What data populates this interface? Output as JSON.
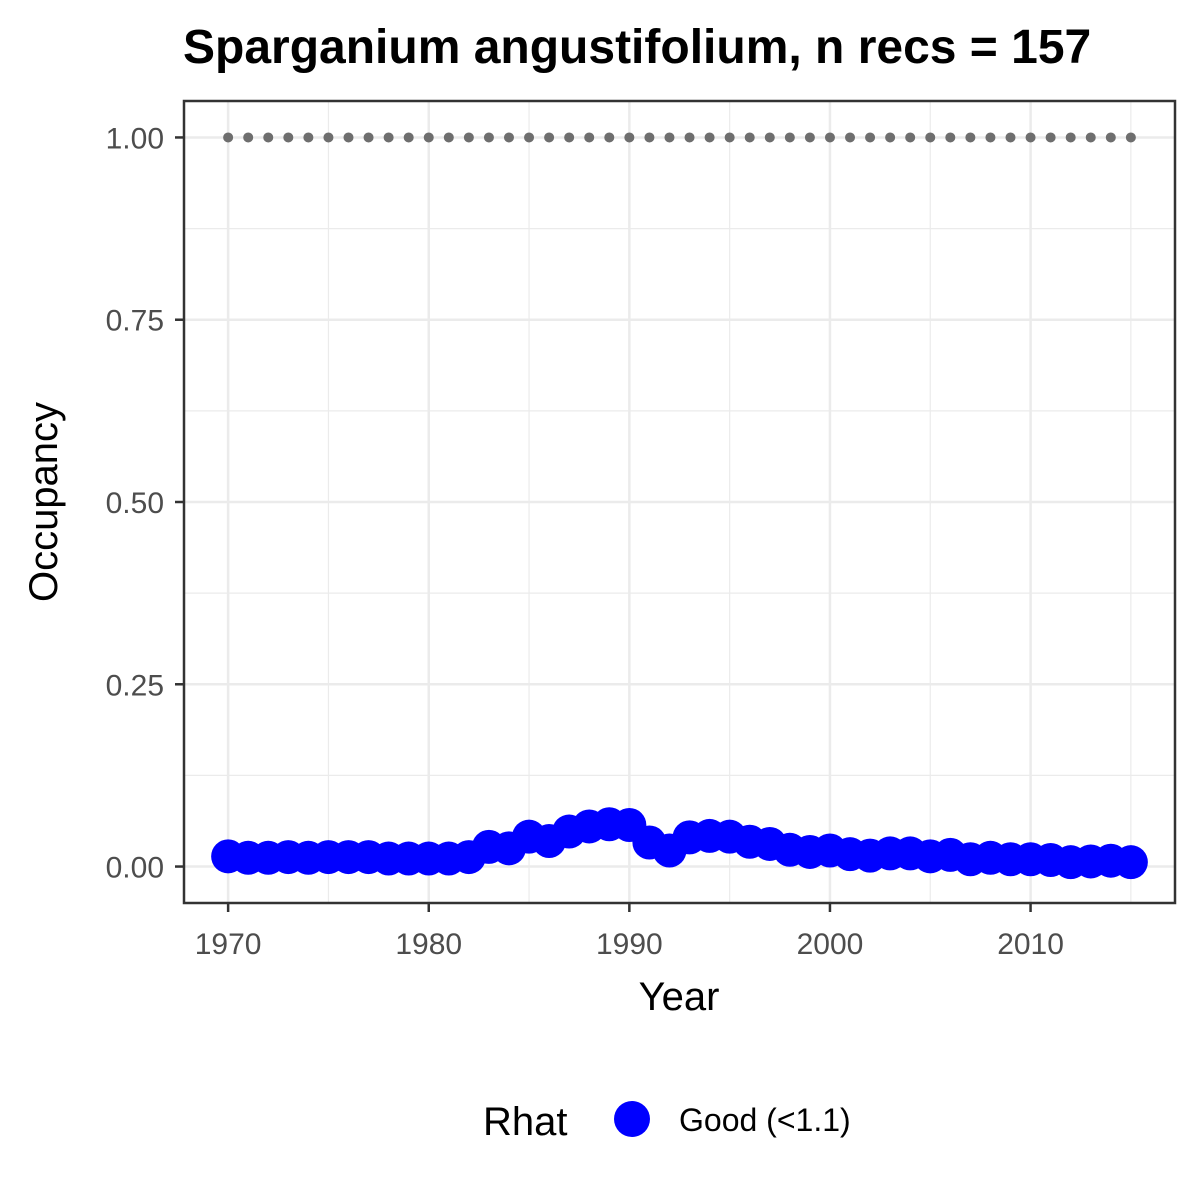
{
  "chart_data": {
    "type": "line",
    "title": "Sparganium angustifolium, n recs = 157",
    "xlabel": "Year",
    "ylabel": "Occupancy",
    "xlim": [
      1967.8,
      2017.2
    ],
    "ylim": [
      -0.05,
      1.05
    ],
    "xticks": [
      1970,
      1980,
      1990,
      2000,
      2010
    ],
    "yticks": [
      0.0,
      0.25,
      0.5,
      0.75,
      1.0
    ],
    "ytick_labels": [
      "0.00",
      "0.25",
      "0.50",
      "0.75",
      "1.00"
    ],
    "grid": true,
    "colors": {
      "occupancy": "#0000ff",
      "reference": "#6e6e6e",
      "grid": "#ebebeb",
      "frame": "#333333"
    },
    "series": [
      {
        "name": "Occupancy",
        "x": [
          1970,
          1971,
          1972,
          1973,
          1974,
          1975,
          1976,
          1977,
          1978,
          1979,
          1980,
          1981,
          1982,
          1983,
          1984,
          1985,
          1986,
          1987,
          1988,
          1989,
          1990,
          1991,
          1992,
          1993,
          1994,
          1995,
          1996,
          1997,
          1998,
          1999,
          2000,
          2001,
          2002,
          2003,
          2004,
          2005,
          2006,
          2007,
          2008,
          2009,
          2010,
          2011,
          2012,
          2013,
          2014,
          2015
        ],
        "values": [
          0.014,
          0.012,
          0.012,
          0.013,
          0.012,
          0.013,
          0.013,
          0.013,
          0.011,
          0.011,
          0.011,
          0.011,
          0.013,
          0.027,
          0.025,
          0.041,
          0.035,
          0.048,
          0.055,
          0.058,
          0.057,
          0.033,
          0.022,
          0.04,
          0.042,
          0.041,
          0.034,
          0.031,
          0.023,
          0.02,
          0.022,
          0.017,
          0.015,
          0.018,
          0.018,
          0.014,
          0.016,
          0.01,
          0.012,
          0.01,
          0.01,
          0.009,
          0.006,
          0.007,
          0.008,
          0.006
        ]
      },
      {
        "name": "Reference",
        "x": [
          1970,
          1971,
          1972,
          1973,
          1974,
          1975,
          1976,
          1977,
          1978,
          1979,
          1980,
          1981,
          1982,
          1983,
          1984,
          1985,
          1986,
          1987,
          1988,
          1989,
          1990,
          1991,
          1992,
          1993,
          1994,
          1995,
          1996,
          1997,
          1998,
          1999,
          2000,
          2001,
          2002,
          2003,
          2004,
          2005,
          2006,
          2007,
          2008,
          2009,
          2010,
          2011,
          2012,
          2013,
          2014,
          2015
        ],
        "values": [
          1,
          1,
          1,
          1,
          1,
          1,
          1,
          1,
          1,
          1,
          1,
          1,
          1,
          1,
          1,
          1,
          1,
          1,
          1,
          1,
          1,
          1,
          1,
          1,
          1,
          1,
          1,
          1,
          1,
          1,
          1,
          1,
          1,
          1,
          1,
          1,
          1,
          1,
          1,
          1,
          1,
          1,
          1,
          1,
          1,
          1
        ]
      }
    ],
    "legend": {
      "title": "Rhat",
      "entries": [
        "Good (<1.1)"
      ],
      "position": "bottom"
    }
  }
}
